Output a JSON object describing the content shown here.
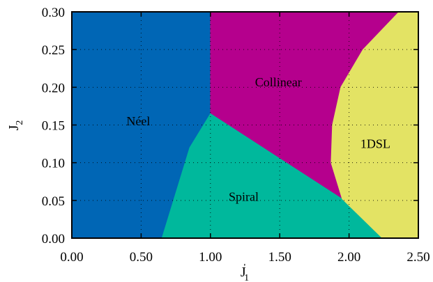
{
  "chart_data": {
    "type": "area",
    "title": "",
    "xlabel": "J",
    "xlabel_sub": "1",
    "xlabel_sup": "'",
    "ylabel": "J",
    "ylabel_sub": "2",
    "xlim": [
      0,
      2.5
    ],
    "ylim": [
      0,
      0.3
    ],
    "xticks": [
      0,
      0.5,
      1,
      1.5,
      2,
      2.5
    ],
    "yticks": [
      0,
      0.05,
      0.1,
      0.15,
      0.2,
      0.25,
      0.3
    ],
    "xtick_labels": [
      "0.00",
      "0.50",
      "1.00",
      "1.50",
      "2.00",
      "2.50"
    ],
    "ytick_labels": [
      "0.00",
      "0.05",
      "0.10",
      "0.15",
      "0.20",
      "0.25",
      "0.30"
    ],
    "grid": true,
    "regions": [
      {
        "name": "Néel",
        "color": "#0066b5",
        "label_at": [
          0.48,
          0.155
        ],
        "polygon": [
          [
            0,
            0
          ],
          [
            0.65,
            0
          ],
          [
            0.85,
            0.12
          ],
          [
            1.0,
            0.165
          ],
          [
            1.0,
            0.3
          ],
          [
            0,
            0.3
          ]
        ]
      },
      {
        "name": "Collinear",
        "color": "#b5008d",
        "label_at": [
          1.49,
          0.207
        ],
        "polygon": [
          [
            1.0,
            0.3
          ],
          [
            2.36,
            0.3
          ],
          [
            2.1,
            0.25
          ],
          [
            1.94,
            0.2
          ],
          [
            1.88,
            0.15
          ],
          [
            1.87,
            0.1
          ],
          [
            1.95,
            0.052
          ],
          [
            1.0,
            0.165
          ]
        ]
      },
      {
        "name": "Spiral",
        "color": "#00b89c",
        "label_at": [
          1.24,
          0.055
        ],
        "polygon": [
          [
            0.65,
            0
          ],
          [
            2.24,
            0
          ],
          [
            1.95,
            0.052
          ],
          [
            1.0,
            0.165
          ],
          [
            0.85,
            0.12
          ]
        ]
      },
      {
        "name": "1DSL",
        "color": "#e3e364",
        "label_at": [
          2.19,
          0.125
        ],
        "polygon": [
          [
            2.36,
            0.3
          ],
          [
            2.5,
            0.3
          ],
          [
            2.5,
            0
          ],
          [
            2.24,
            0
          ],
          [
            1.95,
            0.052
          ],
          [
            1.87,
            0.1
          ],
          [
            1.88,
            0.15
          ],
          [
            1.94,
            0.2
          ],
          [
            2.1,
            0.25
          ]
        ]
      }
    ]
  }
}
